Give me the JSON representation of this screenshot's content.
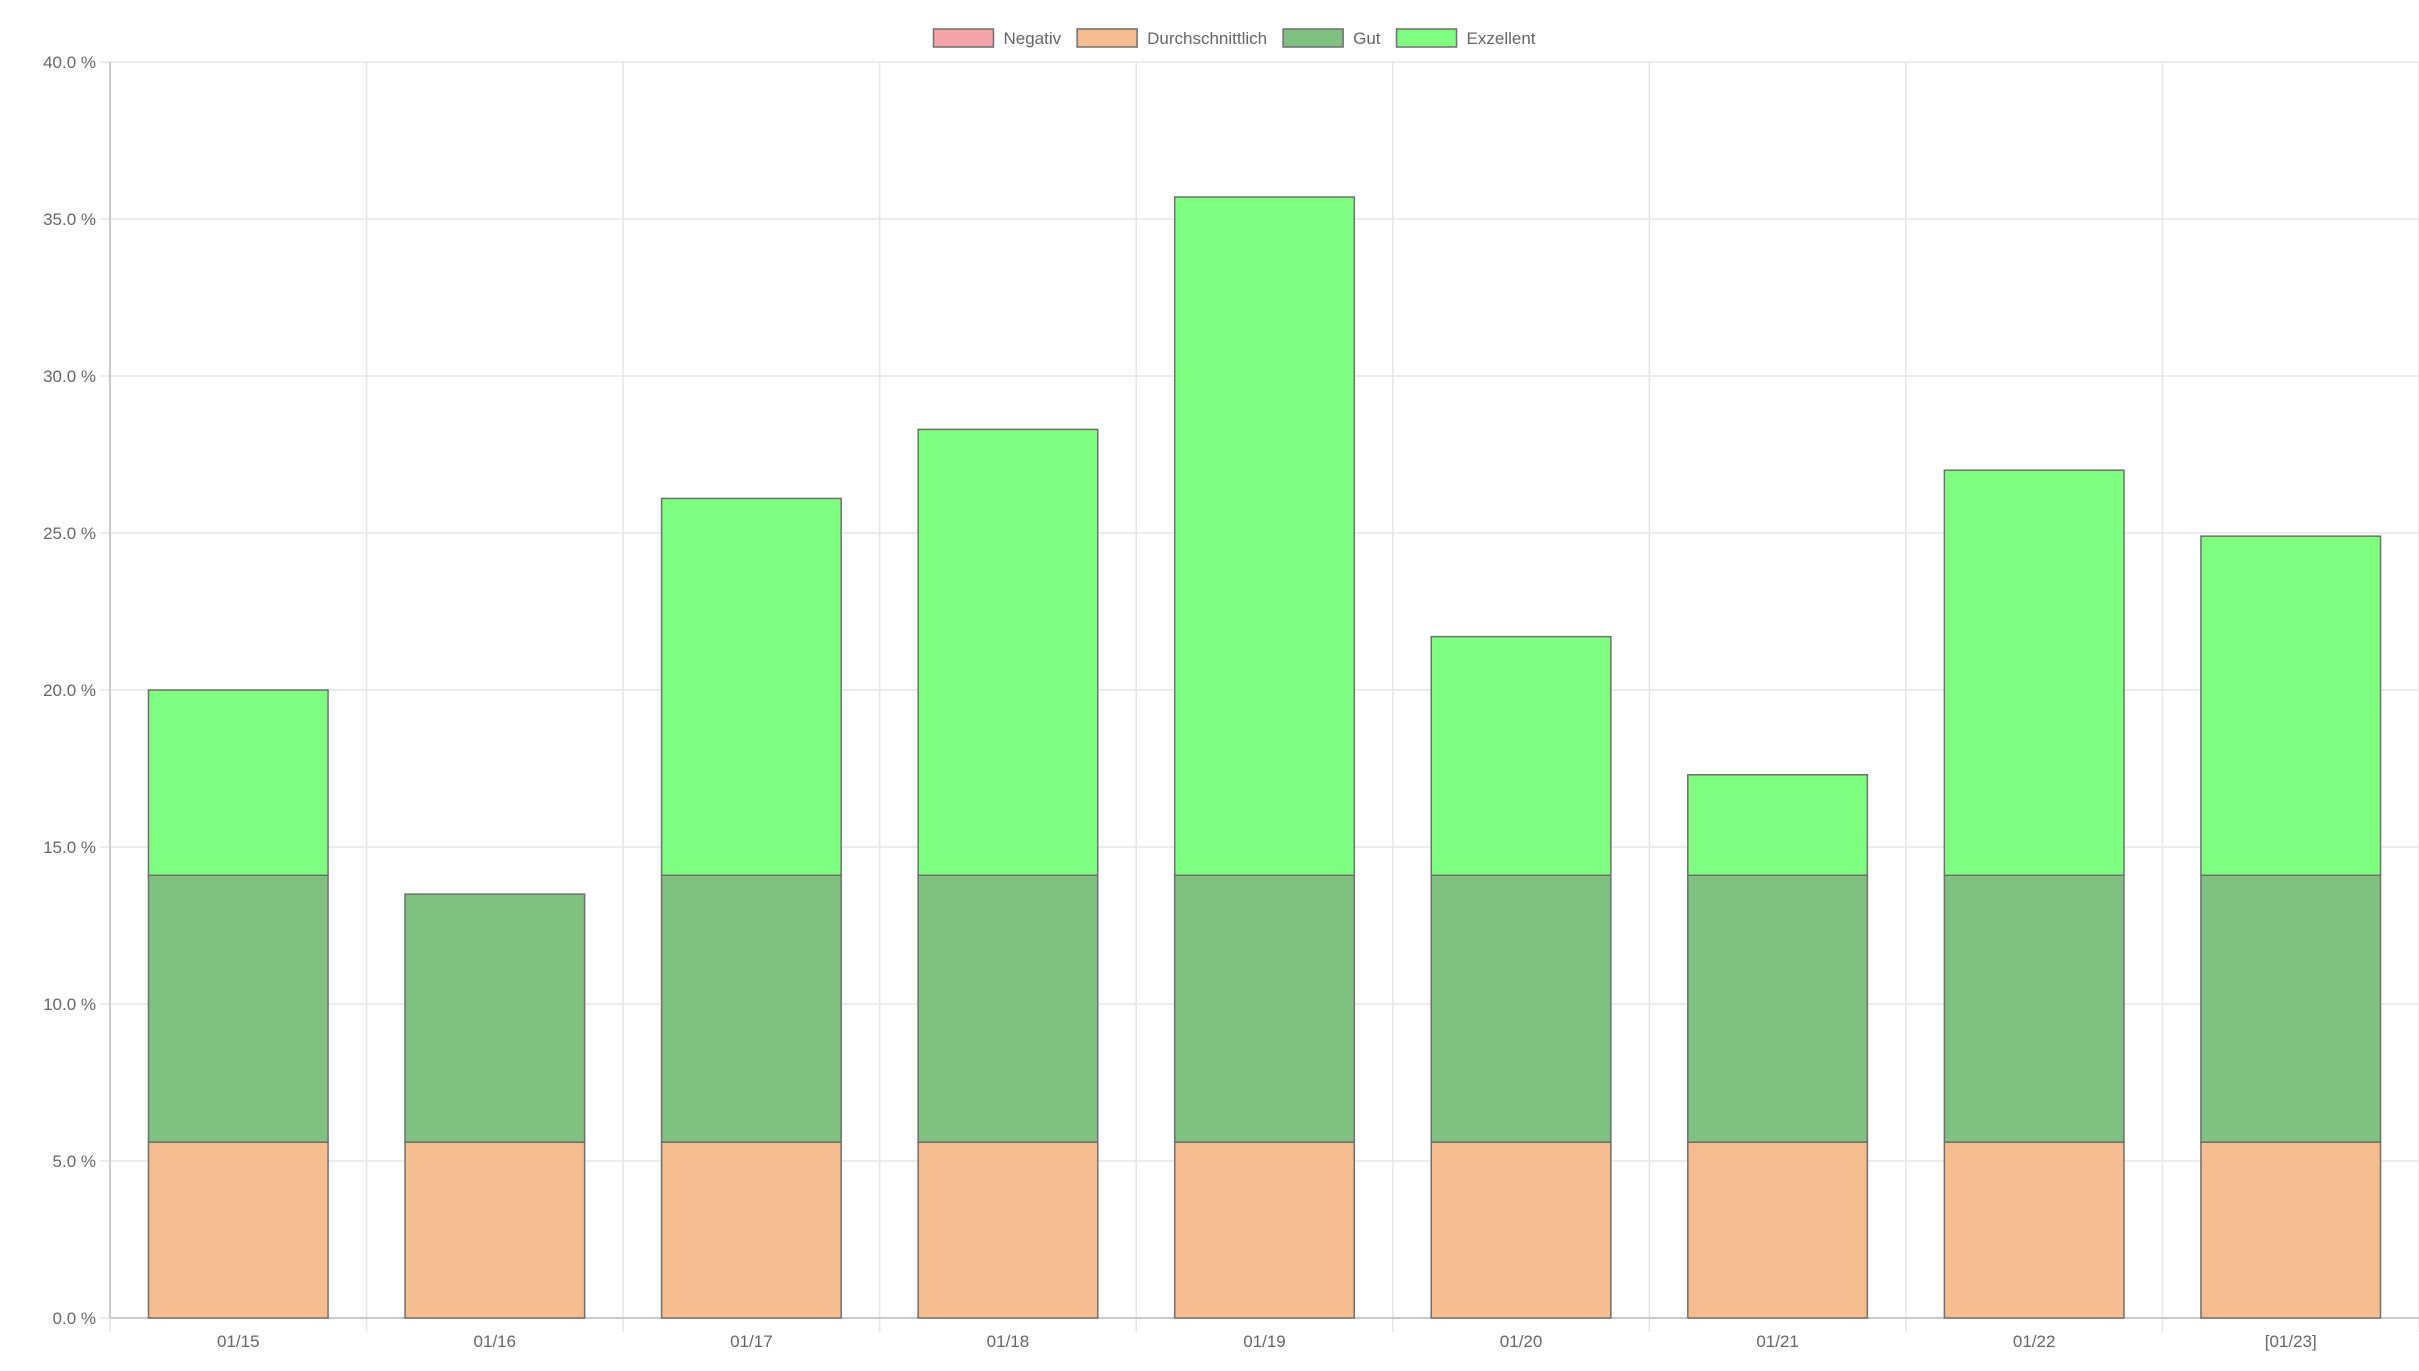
{
  "chart_data": {
    "type": "bar",
    "stacked": true,
    "title": "",
    "xlabel": "",
    "ylabel": "",
    "ylim": [
      0,
      40
    ],
    "y_ticks": [
      0,
      5,
      10,
      15,
      20,
      25,
      30,
      35,
      40
    ],
    "y_tick_labels": [
      "0.0 %",
      "5.0 %",
      "10.0 %",
      "15.0 %",
      "20.0 %",
      "25.0 %",
      "30.0 %",
      "35.0 %",
      "40.0 %"
    ],
    "grid": true,
    "legend_position": "top-center",
    "categories": [
      "01/15",
      "01/16",
      "01/17",
      "01/18",
      "01/19",
      "01/20",
      "01/21",
      "01/22",
      "[01/23]"
    ],
    "series": [
      {
        "name": "Negativ",
        "color": "#f4a3a8",
        "values": [
          0,
          0,
          0,
          0,
          0,
          0,
          0,
          0,
          0
        ]
      },
      {
        "name": "Durchschnittlich",
        "color": "#f5bd90",
        "values": [
          5.6,
          5.6,
          5.6,
          5.6,
          5.6,
          5.6,
          5.6,
          5.6,
          5.6
        ]
      },
      {
        "name": "Gut",
        "color": "#80c080",
        "values": [
          8.5,
          7.9,
          8.5,
          8.5,
          8.5,
          8.5,
          8.5,
          8.5,
          8.5
        ]
      },
      {
        "name": "Exzellent",
        "color": "#80ff80",
        "values": [
          5.9,
          0,
          12.0,
          14.2,
          21.6,
          7.6,
          3.2,
          12.9,
          10.8
        ]
      }
    ]
  }
}
